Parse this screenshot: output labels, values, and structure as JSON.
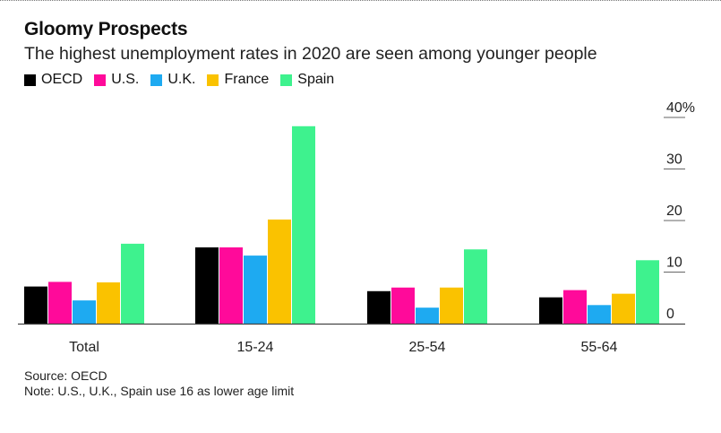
{
  "title": "Gloomy Prospects",
  "subtitle": "The highest unemployment rates in 2020 are seen among younger people",
  "legend": [
    {
      "name": "OECD",
      "color": "#000000"
    },
    {
      "name": "U.S.",
      "color": "#ff0a9a"
    },
    {
      "name": "U.K.",
      "color": "#1eaaf1"
    },
    {
      "name": "France",
      "color": "#fac200"
    },
    {
      "name": "Spain",
      "color": "#3ef28e"
    }
  ],
  "source": "Source: OECD",
  "note": "Note: U.S., U.K., Spain use 16 as lower age limit",
  "chart_data": {
    "type": "bar",
    "title": "Gloomy Prospects",
    "subtitle": "The highest unemployment rates in 2020 are seen among younger people",
    "categories": [
      "Total",
      "15-24",
      "25-54",
      "55-64"
    ],
    "series": [
      {
        "name": "OECD",
        "color": "#000000",
        "values": [
          7.2,
          14.8,
          6.3,
          5.1
        ]
      },
      {
        "name": "U.S.",
        "color": "#ff0a9a",
        "values": [
          8.1,
          14.8,
          7.0,
          6.5
        ]
      },
      {
        "name": "U.K.",
        "color": "#1eaaf1",
        "values": [
          4.5,
          13.2,
          3.1,
          3.6
        ]
      },
      {
        "name": "France",
        "color": "#fac200",
        "values": [
          8.0,
          20.2,
          7.0,
          5.8
        ]
      },
      {
        "name": "Spain",
        "color": "#3ef28e",
        "values": [
          15.5,
          38.3,
          14.4,
          12.3
        ]
      }
    ],
    "yticks": [
      {
        "value": 40,
        "label": "40%"
      },
      {
        "value": 30,
        "label": "30"
      },
      {
        "value": 20,
        "label": "20"
      },
      {
        "value": 10,
        "label": "10"
      },
      {
        "value": 0,
        "label": "0"
      }
    ],
    "ylim": [
      0,
      40
    ],
    "xlabel": "",
    "ylabel": "",
    "axis_position": "right",
    "grid": false
  }
}
